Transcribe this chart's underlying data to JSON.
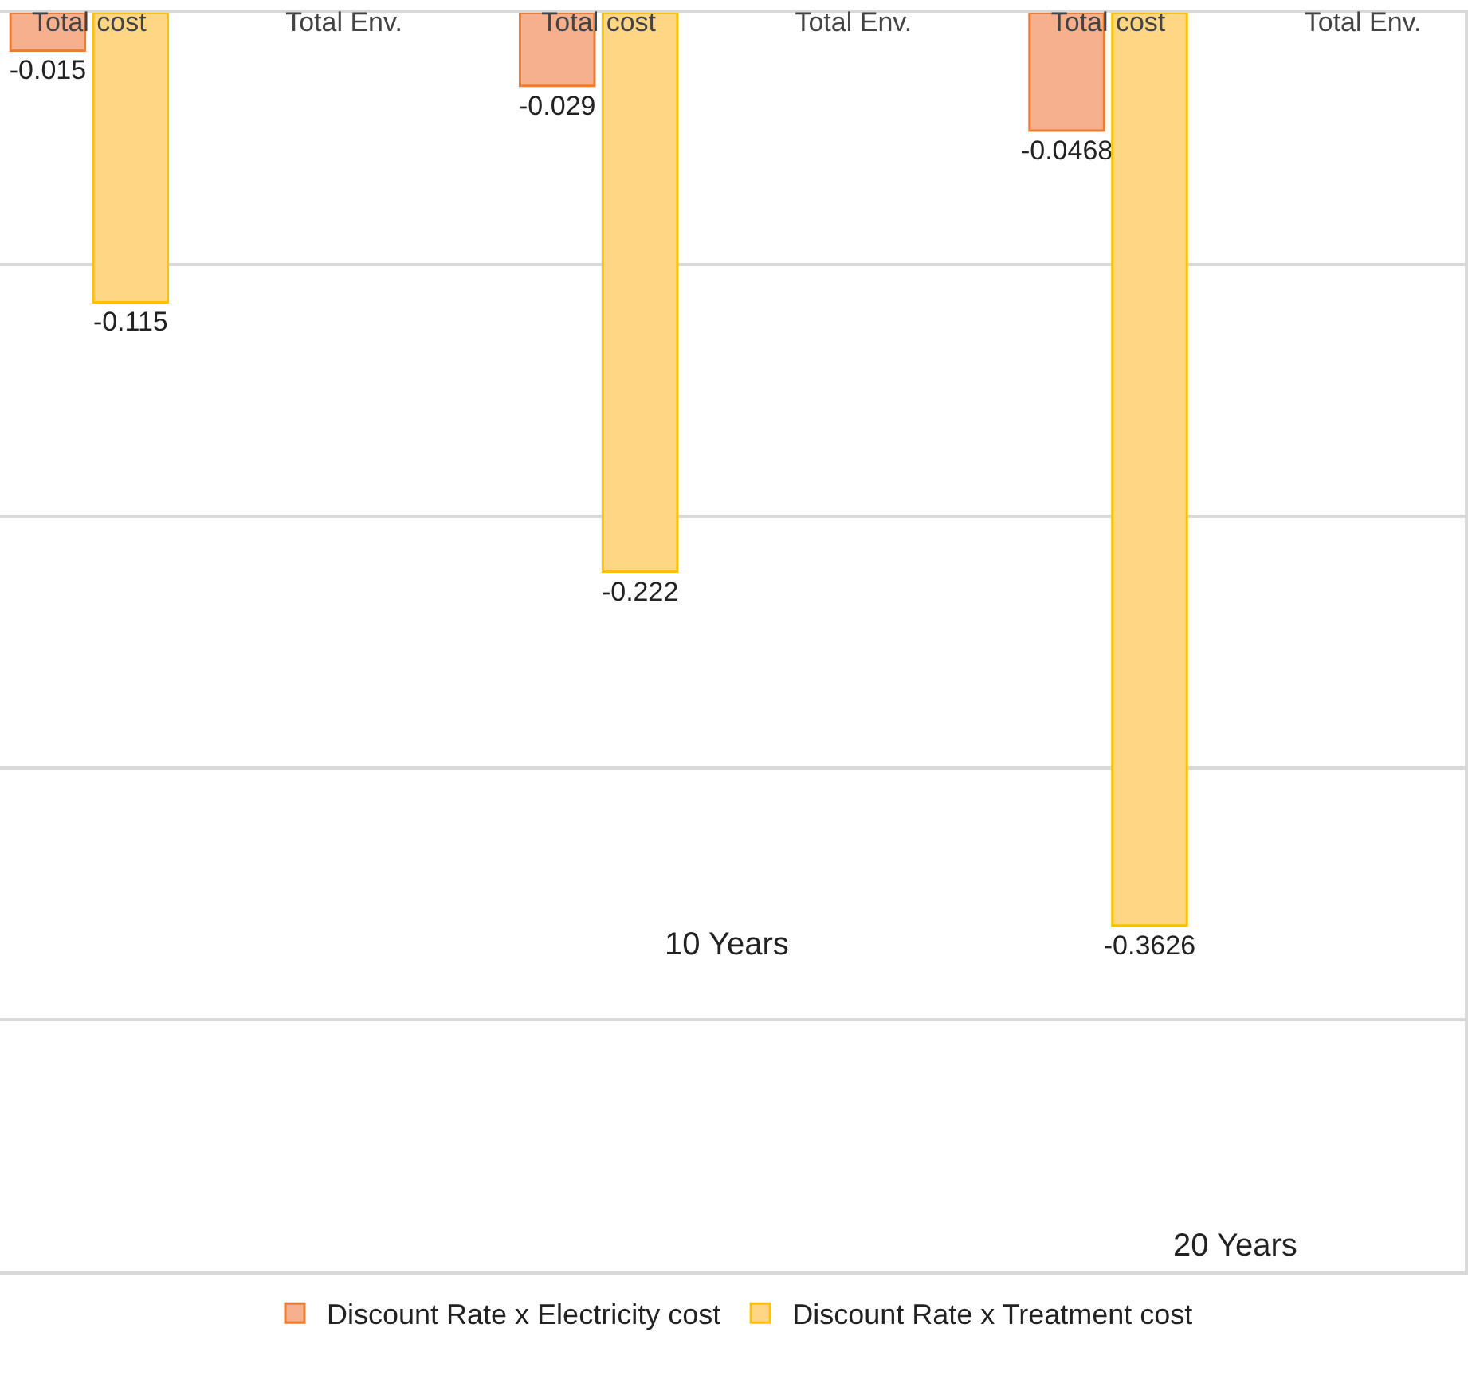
{
  "chart_data": {
    "type": "bar",
    "categories": [
      "Total cost",
      "Total Env.",
      "Total cost",
      "Total Env.",
      "Total cost",
      "Total Env."
    ],
    "series": [
      {
        "name": "Discount Rate x Electricity cost",
        "color": "#f6b08e",
        "values": [
          -0.015,
          null,
          -0.029,
          null,
          -0.0468,
          null
        ]
      },
      {
        "name": "Discount Rate x Treatment cost",
        "color": "#ffd684",
        "values": [
          -0.115,
          null,
          -0.222,
          null,
          -0.3626,
          null
        ]
      }
    ],
    "data_labels": true,
    "annotations": [
      "10 Years",
      "20 Years"
    ],
    "ylim": [
      -0.5,
      0
    ],
    "yticks": [
      {
        "value": -0.1,
        "label": null
      },
      {
        "value": -0.2,
        "label": null
      },
      {
        "value": -0.3,
        "label": null
      },
      {
        "value": -0.4,
        "label": null
      }
    ],
    "grid": "y",
    "tick_labels": "x",
    "legend": "bottom"
  }
}
